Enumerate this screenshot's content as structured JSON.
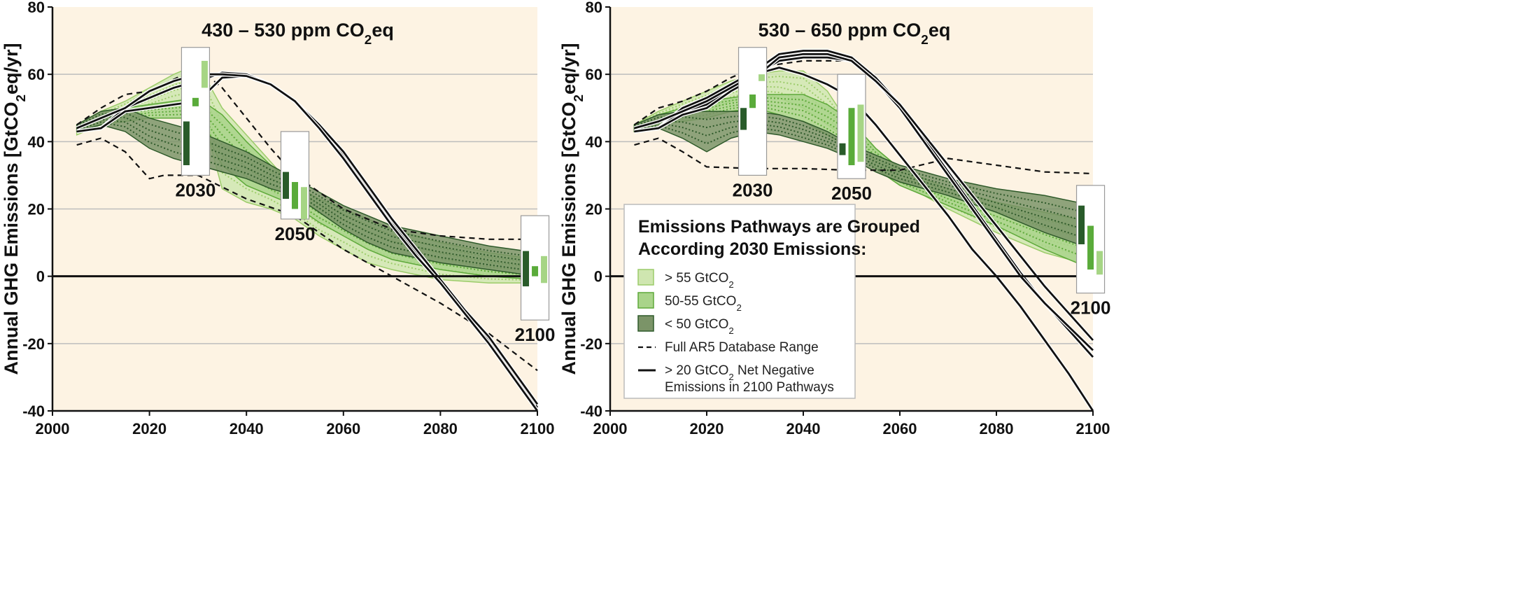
{
  "chart_data": [
    {
      "type": "line",
      "title": "430 – 530 ppm CO",
      "title_sub": "2",
      "title_tail": "eq",
      "ylabel": "Annual GHG Emissions [GtCO",
      "ylabel_sub": "2",
      "ylabel_tail": "eq/yr]",
      "xlim": [
        2000,
        2100
      ],
      "ylim": [
        -40,
        80
      ],
      "x_ticks": [
        2000,
        2020,
        2040,
        2060,
        2080,
        2100
      ],
      "y_ticks": [
        80,
        60,
        40,
        20,
        0,
        -20,
        -40
      ],
      "background": "#fdf3e3",
      "grid": true,
      "bands": [
        {
          "group": "light",
          "x": [
            2005,
            2010,
            2015,
            2020,
            2025,
            2030,
            2035,
            2040,
            2045,
            2050,
            2055,
            2060,
            2065,
            2070,
            2080,
            2090,
            2100
          ],
          "upper": [
            45,
            49,
            52,
            56,
            60,
            63,
            50,
            42,
            34,
            26,
            21,
            19,
            15,
            11,
            7,
            4,
            2
          ],
          "lower": [
            42,
            45,
            48,
            50,
            52,
            53,
            26,
            22,
            20,
            17,
            12,
            8,
            4,
            2,
            -1,
            -2,
            -2
          ]
        },
        {
          "group": "mid",
          "x": [
            2005,
            2010,
            2015,
            2020,
            2025,
            2030,
            2035,
            2040,
            2045,
            2050,
            2055,
            2060,
            2065,
            2070,
            2080,
            2090,
            2100
          ],
          "upper": [
            45,
            49,
            50,
            51,
            52,
            53,
            48,
            40,
            33,
            27,
            23,
            20,
            17,
            14,
            10,
            7,
            5
          ],
          "lower": [
            43,
            45,
            46,
            47,
            47,
            47,
            33,
            27,
            24,
            21,
            16,
            12,
            8,
            5,
            2,
            0,
            -1
          ]
        },
        {
          "group": "dark",
          "x": [
            2005,
            2010,
            2015,
            2020,
            2025,
            2030,
            2035,
            2040,
            2045,
            2050,
            2055,
            2060,
            2065,
            2070,
            2080,
            2090,
            2100
          ],
          "upper": [
            45,
            49,
            50,
            47,
            45,
            43,
            40,
            37,
            33,
            29,
            25,
            21,
            18,
            15,
            12,
            9,
            7
          ],
          "lower": [
            43,
            45,
            43,
            38,
            35,
            33,
            31,
            29,
            26,
            24,
            19,
            14,
            10,
            7,
            4,
            2,
            0
          ]
        }
      ],
      "ar5_range_upper": {
        "x": [
          2005,
          2010,
          2015,
          2020,
          2030,
          2035,
          2040,
          2045,
          2050,
          2060,
          2070,
          2080,
          2090,
          2100
        ],
        "y": [
          45,
          50,
          54,
          55,
          62,
          56,
          47,
          38,
          30,
          20,
          14,
          12,
          11,
          11
        ]
      },
      "ar5_range_lower": {
        "x": [
          2005,
          2010,
          2015,
          2020,
          2023,
          2030,
          2040,
          2050,
          2060,
          2070,
          2080,
          2090,
          2100
        ],
        "y": [
          39,
          41,
          37,
          29,
          30,
          30,
          23,
          18,
          8,
          0,
          -8,
          -17,
          -28
        ]
      },
      "negative_pathways": [
        {
          "x": [
            2005,
            2010,
            2015,
            2020,
            2025,
            2030,
            2035,
            2040,
            2045,
            2050,
            2055,
            2060,
            2065,
            2070,
            2075,
            2080,
            2085,
            2090,
            2095,
            2100
          ],
          "y": [
            43,
            44,
            50,
            53,
            56,
            58,
            60.5,
            60,
            57,
            52,
            44,
            36,
            26,
            16,
            7,
            -2,
            -11,
            -19,
            -29,
            -39
          ]
        },
        {
          "x": [
            2005,
            2010,
            2015,
            2020,
            2025,
            2030,
            2035,
            2040,
            2045,
            2050,
            2055,
            2060,
            2065,
            2070,
            2075,
            2080,
            2085,
            2090,
            2095,
            2100
          ],
          "y": [
            43,
            44,
            49,
            50,
            51,
            52,
            59,
            59.5,
            57,
            52,
            45,
            37,
            27,
            17,
            8,
            -1,
            -10,
            -18,
            -28,
            -38
          ]
        },
        {
          "x": [
            2005,
            2010,
            2015,
            2020,
            2025,
            2030,
            2035,
            2040,
            2045,
            2050,
            2055,
            2060,
            2065,
            2070,
            2075,
            2080,
            2085,
            2090,
            2095,
            2100
          ],
          "y": [
            44,
            47,
            50,
            55,
            58,
            60,
            60,
            59.5,
            57,
            52,
            44,
            35,
            25,
            15,
            6,
            -2,
            -11,
            -20,
            -30,
            -40
          ]
        }
      ],
      "range_boxes": [
        {
          "year_label": "2030",
          "x": 2029.5,
          "y_top": 68,
          "y_bot": 30,
          "bars": [
            {
              "group": "dark",
              "low": 33,
              "high": 46
            },
            {
              "group": "mid",
              "low": 50.5,
              "high": 53
            },
            {
              "group": "light",
              "low": 56,
              "high": 64
            }
          ]
        },
        {
          "year_label": "2050",
          "x": 2050,
          "y_top": 43,
          "y_bot": 17,
          "bars": [
            {
              "group": "dark",
              "low": 23,
              "high": 31
            },
            {
              "group": "mid",
              "low": 20,
              "high": 28
            },
            {
              "group": "light",
              "low": 17,
              "high": 26.5
            }
          ]
        },
        {
          "year_label": "2100",
          "x": 2099.5,
          "y_top": 18,
          "y_bot": -13,
          "bars": [
            {
              "group": "dark",
              "low": -3,
              "high": 7.5
            },
            {
              "group": "mid",
              "low": 0,
              "high": 3
            },
            {
              "group": "light",
              "low": -2,
              "high": 6
            }
          ]
        }
      ]
    },
    {
      "type": "line",
      "title": "530 – 650 ppm CO",
      "title_sub": "2",
      "title_tail": "eq",
      "ylabel": "Annual GHG Emissions [GtCO",
      "ylabel_sub": "2",
      "ylabel_tail": "eq/yr]",
      "xlim": [
        2000,
        2100
      ],
      "ylim": [
        -40,
        80
      ],
      "x_ticks": [
        2000,
        2020,
        2040,
        2060,
        2080,
        2100
      ],
      "y_ticks": [
        80,
        60,
        40,
        20,
        0,
        -20,
        -40
      ],
      "background": "#fdf3e3",
      "grid": true,
      "bands": [
        {
          "group": "light",
          "x": [
            2005,
            2010,
            2015,
            2020,
            2025,
            2030,
            2035,
            2040,
            2045,
            2050,
            2055,
            2060,
            2070,
            2080,
            2090,
            2100
          ],
          "upper": [
            45,
            49,
            52,
            55,
            58,
            60,
            61,
            61,
            55,
            44,
            38,
            32,
            25,
            21,
            17,
            14
          ],
          "lower": [
            43,
            46,
            48,
            49,
            52,
            54,
            53,
            50,
            45,
            40,
            34,
            28,
            20,
            13,
            7,
            3
          ]
        },
        {
          "group": "mid",
          "x": [
            2005,
            2010,
            2015,
            2020,
            2025,
            2030,
            2035,
            2040,
            2045,
            2050,
            2055,
            2060,
            2070,
            2080,
            2090,
            2100
          ],
          "upper": [
            45,
            48,
            50,
            52,
            53,
            54,
            54,
            54,
            51,
            46,
            38,
            32,
            26,
            22,
            19,
            16
          ],
          "lower": [
            43,
            45,
            46,
            47,
            49,
            50,
            48,
            46,
            42,
            38,
            32,
            27,
            21,
            15,
            8,
            2
          ]
        },
        {
          "group": "dark",
          "x": [
            2005,
            2010,
            2015,
            2020,
            2025,
            2030,
            2035,
            2040,
            2045,
            2050,
            2055,
            2060,
            2070,
            2080,
            2090,
            2100
          ],
          "upper": [
            45,
            48,
            49,
            49,
            49,
            49,
            48,
            46,
            43,
            39,
            36,
            33,
            29,
            26,
            24,
            21
          ],
          "lower": [
            43,
            44,
            41,
            37,
            41,
            43,
            42,
            40,
            38,
            35,
            31,
            28,
            24,
            19,
            13,
            8
          ]
        }
      ],
      "ar5_range_upper": {
        "x": [
          2005,
          2010,
          2015,
          2020,
          2025,
          2030,
          2035,
          2040,
          2045,
          2050
        ],
        "y": [
          45,
          50,
          52,
          55,
          59,
          62,
          63,
          64,
          64,
          64
        ]
      },
      "ar5_range_lower": {
        "x": [
          2005,
          2010,
          2015,
          2020,
          2030,
          2040,
          2050,
          2060,
          2070,
          2080,
          2090,
          2100
        ],
        "y": [
          39,
          41,
          37,
          32.5,
          32,
          32,
          31.5,
          31.5,
          35,
          33,
          31,
          30.5
        ]
      },
      "negative_pathways": [
        {
          "x": [
            2005,
            2010,
            2015,
            2020,
            2025,
            2030,
            2035,
            2040,
            2045,
            2050,
            2055,
            2060,
            2065,
            2070,
            2075,
            2080,
            2085,
            2090,
            2095,
            2100
          ],
          "y": [
            43,
            44,
            50,
            53,
            57,
            61,
            66,
            67,
            67,
            65,
            59,
            51,
            41,
            31,
            21,
            11,
            1,
            -8,
            -16,
            -24
          ]
        },
        {
          "x": [
            2005,
            2010,
            2015,
            2020,
            2025,
            2030,
            2035,
            2040,
            2045,
            2050,
            2055,
            2060,
            2065,
            2070,
            2075,
            2080,
            2085,
            2090,
            2095,
            2100
          ],
          "y": [
            43,
            44,
            49,
            51,
            56,
            60,
            64,
            65,
            65,
            64,
            58,
            50,
            40,
            30,
            20,
            10,
            0,
            -8,
            -15,
            -22
          ]
        },
        {
          "x": [
            2005,
            2010,
            2015,
            2020,
            2025,
            2030,
            2035,
            2040,
            2045,
            2050,
            2055,
            2060,
            2065,
            2070,
            2075,
            2080,
            2085,
            2090,
            2095,
            2100
          ],
          "y": [
            43,
            44,
            48,
            50,
            55,
            59,
            65,
            66,
            66,
            64,
            58,
            51,
            42,
            33,
            24,
            15,
            6,
            -3,
            -11,
            -19
          ]
        },
        {
          "x": [
            2005,
            2010,
            2015,
            2020,
            2025,
            2030,
            2035,
            2040,
            2045,
            2050,
            2055,
            2060,
            2065,
            2070,
            2075,
            2080,
            2085,
            2090,
            2095,
            2100
          ],
          "y": [
            44,
            46,
            49,
            52,
            56,
            60,
            62,
            60,
            57,
            53,
            45,
            36,
            27,
            18,
            8,
            0,
            -9,
            -19,
            -29,
            -40
          ]
        }
      ],
      "range_boxes": [
        {
          "year_label": "2030",
          "x": 2029.5,
          "y_top": 68,
          "y_bot": 30,
          "bars": [
            {
              "group": "dark",
              "low": 43.5,
              "high": 50
            },
            {
              "group": "mid",
              "low": 50,
              "high": 54
            },
            {
              "group": "light",
              "low": 58,
              "high": 60
            }
          ]
        },
        {
          "year_label": "2050",
          "x": 2050,
          "y_top": 60,
          "y_bot": 29,
          "bars": [
            {
              "group": "dark",
              "low": 36,
              "high": 39.5
            },
            {
              "group": "mid",
              "low": 33,
              "high": 50
            },
            {
              "group": "light",
              "low": 34,
              "high": 51
            }
          ]
        },
        {
          "year_label": "2100",
          "x": 2099.5,
          "y_top": 27,
          "y_bot": -5,
          "bars": [
            {
              "group": "dark",
              "low": 9.5,
              "high": 21
            },
            {
              "group": "mid",
              "low": 2,
              "high": 15
            },
            {
              "group": "light",
              "low": 0.5,
              "high": 7.5
            }
          ]
        }
      ]
    }
  ],
  "legend": {
    "title_line1": "Emissions Pathways are Grouped",
    "title_line2": "According 2030 Emissions:",
    "items": [
      {
        "kind": "swatch",
        "group": "light",
        "label": "> 55 GtCO",
        "sub": "2"
      },
      {
        "kind": "swatch",
        "group": "mid",
        "label": "50-55 GtCO",
        "sub": "2"
      },
      {
        "kind": "swatch",
        "group": "dark",
        "label": "< 50 GtCO",
        "sub": "2"
      },
      {
        "kind": "dashed",
        "label": "Full AR5 Database Range"
      },
      {
        "kind": "solid",
        "label": "> 20 GtCO",
        "sub": "2",
        "label_tail": " Net Negative",
        "label_line2": "Emissions in 2100 Pathways"
      }
    ]
  },
  "colors": {
    "light_fill": "#cfe6b0",
    "light_stroke": "#9ccc6a",
    "light_bar": "#a6d585",
    "mid_fill": "#a9d48a",
    "mid_stroke": "#5ea93a",
    "mid_bar": "#5aab3a",
    "dark_fill": "#7b9468",
    "dark_stroke": "#2e5a2a",
    "dark_bar": "#295b2a",
    "plot_bg": "#fdf3e3",
    "grid": "#bdbdbd"
  }
}
